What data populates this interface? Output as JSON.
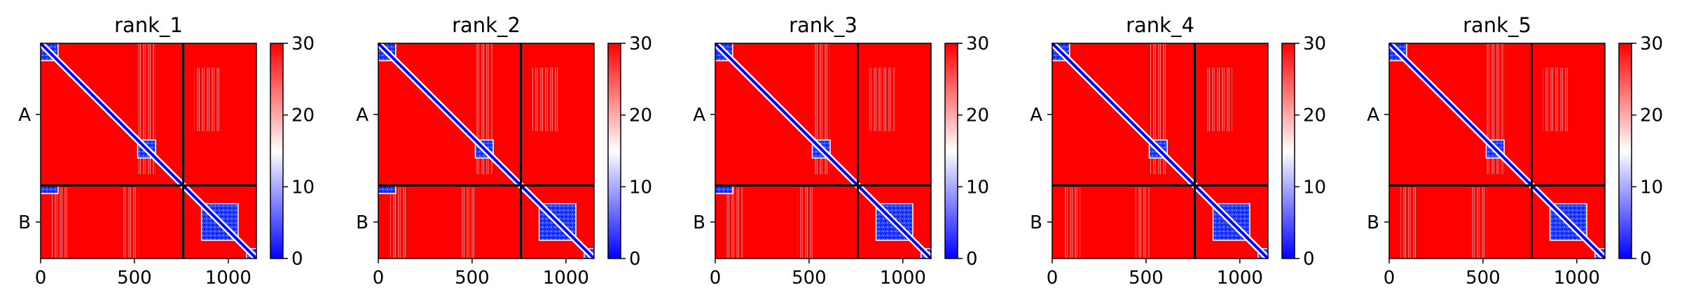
{
  "figure": {
    "panels": [
      "rank_1",
      "rank_2",
      "rank_3",
      "rank_4",
      "rank_5"
    ]
  },
  "chart_data": [
    {
      "type": "heatmap",
      "title": "rank_1",
      "x_ticks": [
        0,
        500,
        1000
      ],
      "x_tick_labels": [
        "0",
        "500",
        "1000"
      ],
      "xlim": [
        0,
        1150
      ],
      "y_tick_labels": [
        "A",
        "B"
      ],
      "chain_boundary": 760,
      "chains": [
        {
          "name": "A",
          "start": 0,
          "end": 760
        },
        {
          "name": "B",
          "start": 760,
          "end": 1150
        }
      ],
      "colorbar": {
        "min": 0,
        "max": 30,
        "ticks": [
          0,
          10,
          20,
          30
        ],
        "tick_labels": [
          "0",
          "10",
          "20",
          "30"
        ],
        "colormap": "bwr"
      },
      "low_error_blocks": [
        [
          0,
          90,
          0,
          90
        ],
        [
          520,
          610,
          520,
          610
        ],
        [
          860,
          1050,
          860,
          1050
        ],
        [
          1100,
          1150,
          1100,
          1150
        ],
        [
          0,
          90,
          760,
          800
        ]
      ]
    },
    {
      "type": "heatmap",
      "title": "rank_2",
      "x_ticks": [
        0,
        500,
        1000
      ],
      "x_tick_labels": [
        "0",
        "500",
        "1000"
      ],
      "xlim": [
        0,
        1150
      ],
      "y_tick_labels": [
        "A",
        "B"
      ],
      "chain_boundary": 760,
      "chains": [
        {
          "name": "A",
          "start": 0,
          "end": 760
        },
        {
          "name": "B",
          "start": 760,
          "end": 1150
        }
      ],
      "colorbar": {
        "min": 0,
        "max": 30,
        "ticks": [
          0,
          10,
          20,
          30
        ],
        "tick_labels": [
          "0",
          "10",
          "20",
          "30"
        ],
        "colormap": "bwr"
      },
      "low_error_blocks": [
        [
          0,
          90,
          0,
          90
        ],
        [
          520,
          610,
          520,
          610
        ],
        [
          860,
          1050,
          860,
          1050
        ],
        [
          1100,
          1150,
          1100,
          1150
        ],
        [
          0,
          90,
          760,
          800
        ]
      ]
    },
    {
      "type": "heatmap",
      "title": "rank_3",
      "x_ticks": [
        0,
        500,
        1000
      ],
      "x_tick_labels": [
        "0",
        "500",
        "1000"
      ],
      "xlim": [
        0,
        1150
      ],
      "y_tick_labels": [
        "A",
        "B"
      ],
      "chain_boundary": 760,
      "chains": [
        {
          "name": "A",
          "start": 0,
          "end": 760
        },
        {
          "name": "B",
          "start": 760,
          "end": 1150
        }
      ],
      "colorbar": {
        "min": 0,
        "max": 30,
        "ticks": [
          0,
          10,
          20,
          30
        ],
        "tick_labels": [
          "0",
          "10",
          "20",
          "30"
        ],
        "colormap": "bwr"
      },
      "low_error_blocks": [
        [
          0,
          90,
          0,
          90
        ],
        [
          520,
          610,
          520,
          610
        ],
        [
          860,
          1050,
          860,
          1050
        ],
        [
          1100,
          1150,
          1100,
          1150
        ],
        [
          0,
          90,
          760,
          800
        ]
      ]
    },
    {
      "type": "heatmap",
      "title": "rank_4",
      "x_ticks": [
        0,
        500,
        1000
      ],
      "x_tick_labels": [
        "0",
        "500",
        "1000"
      ],
      "xlim": [
        0,
        1150
      ],
      "y_tick_labels": [
        "A",
        "B"
      ],
      "chain_boundary": 760,
      "chains": [
        {
          "name": "A",
          "start": 0,
          "end": 760
        },
        {
          "name": "B",
          "start": 760,
          "end": 1150
        }
      ],
      "colorbar": {
        "min": 0,
        "max": 30,
        "ticks": [
          0,
          10,
          20,
          30
        ],
        "tick_labels": [
          "0",
          "10",
          "20",
          "30"
        ],
        "colormap": "bwr"
      },
      "low_error_blocks": [
        [
          0,
          90,
          0,
          90
        ],
        [
          520,
          610,
          520,
          610
        ],
        [
          860,
          1050,
          860,
          1050
        ],
        [
          1100,
          1150,
          1100,
          1150
        ]
      ]
    },
    {
      "type": "heatmap",
      "title": "rank_5",
      "x_ticks": [
        0,
        500,
        1000
      ],
      "x_tick_labels": [
        "0",
        "500",
        "1000"
      ],
      "xlim": [
        0,
        1150
      ],
      "y_tick_labels": [
        "A",
        "B"
      ],
      "chain_boundary": 760,
      "chains": [
        {
          "name": "A",
          "start": 0,
          "end": 760
        },
        {
          "name": "B",
          "start": 760,
          "end": 1150
        }
      ],
      "colorbar": {
        "min": 0,
        "max": 30,
        "ticks": [
          0,
          10,
          20,
          30
        ],
        "tick_labels": [
          "0",
          "10",
          "20",
          "30"
        ],
        "colormap": "bwr"
      },
      "low_error_blocks": [
        [
          0,
          90,
          0,
          90
        ],
        [
          520,
          610,
          520,
          610
        ],
        [
          860,
          1050,
          860,
          1050
        ],
        [
          1100,
          1150,
          1100,
          1150
        ]
      ]
    }
  ]
}
